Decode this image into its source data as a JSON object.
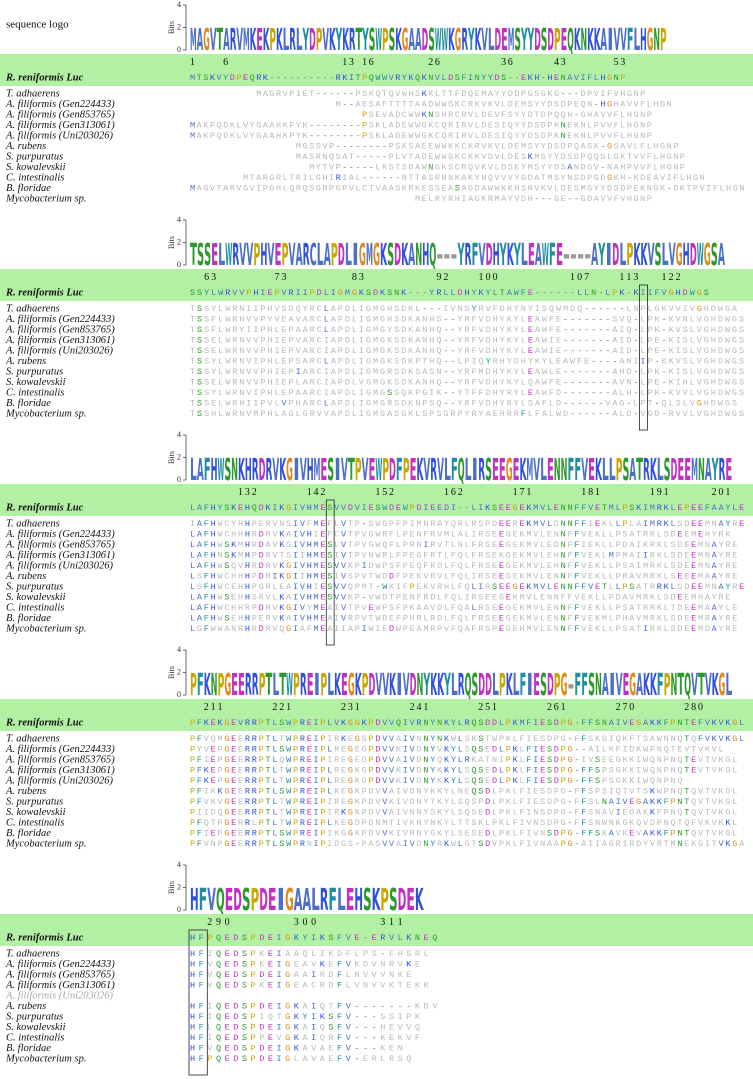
{
  "logo_label": "sequence logo",
  "logo_axis": {
    "label": "Bits",
    "ticks": [
      0,
      2,
      4
    ]
  },
  "reference_name": "R. reniformis Luc",
  "species": [
    "T. adhaerens",
    "A. filiformis (Gen224433)",
    "A. filiformis (Gen853765)",
    "A. filiformis (Gen313061)",
    "A. filiformis (Uni203026)",
    "A. rubens",
    "S. purpuratus",
    "S. kowalevskii",
    "C. intestinalis",
    "B. floridae",
    "Mycobacterium sp."
  ],
  "residue_colors": {
    "KRH": "#2f4fe0",
    "DE": "#c22fc2",
    "STNQ": "#2a9a2a",
    "G": "#e08a1a",
    "P": "#c8a800",
    "FWY": "#1f8fa0",
    "AVLIMC": "#4d6fc8"
  },
  "blocks": [
    {
      "logo": "MAGVTARVMKEKPKLRLYDPVKYKRTYSWPSKGAADSWWKGRYKVLDEMSYYDSDPEQKNKKAIVVFLHGNP",
      "ruler": "1    6                 13 16        26         36      43       53",
      "reference": "MTSKVYDPEQRK----------RKITPQWWVRYKQKNVLDSFINYYDS--EKH-HENAVIFLHGNP",
      "rows": [
        "          MAGRVPIET------PSKQTQVWHSKKLTTFDQEMAYYDDPGSGKG---DPVIFVHGNP",
        "                      M--AESAFTTTTAADWWGKCRKVKVLDEMSYYDSDPEQN-HGHAVVFLHGN",
        "                          PSEVADCWWKNSHRCRVLDEVFSYYDTDPQQH-GHAVVFLHGNP",
        "MAKPQDKLVYGAAHKPYK--------PSKLADEWWGKCQRIRVLDESIQYYDSDPKNEKNLPVVFLHGNP",
        "MAKPQDKLVYGAAHKPYK--------PSKLADEWWGKCQRIRVLDESIQYYDSDPKNEKNLPVVFLHGNP",
        "                MGSSVP--------PSKSAEEWWKKCKRVKVLDEMSYYDSDPQASK-GSAVLFLHGNP",
        "                MASRNQSAT-----PLVTADEWWGKCKKVDVLDESKMSYYDSDPQQSLGKTVVFLHGNP",
        "                  MYTVP-----LKSTSDAWNGKSCRQVKVLDSEYMSYYDSANDGV-NAHPVVFLHGNP",
        "        MTARGRLTRILGHIRIAL------NTTASRNNKAKYNQVVVYGDATMSYNSDPGDGKH-KDEAVIFLHGN",
        "MAGVTARVGVIPGHLQRQSGRPGPVLCTVAASKRKESSEASAGDAWWKKHSRVKVLDESMSYYDSDPEKNGK-DKTPVIFLHGN",
        "                                  MELRYRHIAGKRMAYVDH---GE--GDAVVFVHGNP"
      ]
    },
    {
      "logo": "TSSELWRVVPHVEPVARCLAPDLIGMGKSDKANHQ---YRFVDHYKYLEAWFE----AYIDLPKKVSLVGHDWGSA",
      "ruler": "  63        73         83          92    100          107    113   122",
      "reference": "SSYLWRVVPHIEPVRIIPDLIGMGKSDKSNK---YRLLDHYKYLTAWFE------LLN-LPK-KIIFVGHDWGS",
      "rows": [
        "TSSYLWRNIIPHVSDQYRCLAPDLIGMGHSDKL---IVNSYRVFDHYNYISQWMDQ------LNPLGKVVIVGHDWGA",
        "TSSFLWRHVVPYVEAVARCLAPDLIGMGHSDKANHS--YRFVDHYKYLEAWFE-------SVQ-LPK-KVNLVGHDWGS",
        "TSSFLWRYIIPHLEPAARCLAPDLIGMGYSDKANHQ--YRFVDHYKYLEAWFE-------AIQ-LPK-KVSLVGHDWGS",
        "TSSELWRNVVPHIEPVARCIAPDLIGMGKSDKANHQ--YRFVDHYKYLEAWIE-------AID-LPE-KISLVGHDWGS",
        "TSSELWRNVVPHIEPVARCIAPDLIGMGKSDKANHQ--YRFVDHYKYLEAWIE-------AID-LPE-KISLVGHDWGS",
        "TSSYLWRNVIPHLEPSARCLAPDLIGMGKSDKPTHQ--LPIQYRHYDHYKYLEAWFE----ANIIP-KKVSLVGHDWGS",
        "TSSYLWRNVVPHIEPIARCIAPDLIGMGRSDKSASN--YRFMDHYKYLEAWLE-------AHD-LPK-KISLVGHDWGS",
        "TSSELWRNVVPHIEPLARCIAPDLVGMGKSDKANHQ--YRFVDHYKYLQAWFE-------AVN-LPE-KIHLVGHDWGS",
        "TSSYLWRNVIPHLEPAARCIAPDLIGMGSSQKPGIK--YTFFDHYRYLEAWFD-------ALH-LPK-KVVLVGHDWGS",
        "TSSELWRHIIPVLVPHARCLAPDLIGMGRSDKNPSQ--YRFVDHYRYLSAFLD------VAG-LPT-QLSLVGHDWGS",
        "TSSHLWRNVMPHLAGLGRVVAPDLIGMGASGKLSPSGRPYRYAEHRRFLFALWD------ALD-VGD-RVVLVGHDWGS"
      ]
    },
    {
      "logo": "LAFHWSNKHRDRVKGIVHMESIVTPVEWPDFPEKVRVLFQLIRSEEGEKMVLENNFFVEKLLPSATRKLSDEEMNAYRE",
      "ruler": "       132       142       152       162       171       181       191      201",
      "reference": "LAFHYSKEHQDKIKGIVHMESVVDVIESWDEWPDIEEDI--LIKSEEGEKMVLENNFFVETMLPSKIMRKLEPEEFAAYLE",
      "rows": [
        "IAFHWCYHHPERVNSIVFMEFLVTP-SWGPFPIMNRAYQRLRSPDEEREKMVLDNNFFIEKLLPLAIMRKLSDEEMNAYRE",
        "LAFHWCHHHRDRVKAIVHIEFCVTPVGWRFLPENFRVMLALIRSEEGEKMVLENNFFVEKLLPSATRRLSDEEMEHYRK",
        "LAFHWSKMHRDAVKSIVHMESLVTPVGWQFLPRNIRVTLNLFRSEEGEKMVLEDNFFIEKLLPDAIKRKLSDEEMNAYRE",
        "LAFHNSKMHPDRVTSIIHMESIVTPVNWRLFPEGFRTLFQLFRSEKGEKMVLEHNFFVEKLMPMAIIRKLSDEEMNAYRE",
        "LAFHWSQVHRDRVKGIVHMESVVKPIDWPSFPEQFRDLFQLFRSEEGEKMVLEHNFFVEKLLPSAIMRKLSDEEMNAYRE",
        "LSFHWCHHHPDRIKGIIHMESIVSPVTWDDFPEKVRVLFQLIRSEEGEKMVLENNFFVEKLLPRAVMRKLSEEEMAAYRE",
        "LSFHWCEHHPGRLEAIVHIESVVQPMT-WKIFPEKVRHLFQLIRSEEGEKMVLENNFFVETLLPSATRRKLSDEEMNAYRE",
        "LAFHWSEHHSRVLKAIVHMESVVKP-VWDTPENFRDLFQLIRSEEGEKMVLENNFFVEKLLPDAVMRKLSDEEMHAYRE",
        "LAFHWCHHRPDRVKGIVYMEAIVTPVEWPSFPKAAVDLFQALRSEEGEKMVLENNFFVEKLLPSATRRKLTDEEMAAYLE",
        "LAFHWSEHHPERVKAIVHMEAIVRPVTWDEFPHRLRDLFQLFRSEEGEKMVLENNFFVEKMLPHAVMRKLSDEEMRAYRE",
        "LGFWWANRHRDRVQGIAFMEAIIAPIWIEDWPEAMRPVFQAFRSPEGEHMVLENNFFVEKLLPSATIRKLSDEEMDAYRE"
      ]
    },
    {
      "logo": "PFKNPGEERRPTLTWPREIPLKEGKPDVVKIVDNYKKYLRQSDDLPKLFIESDPG-FFSNAIVEGAKKFPNTQVTVKGL",
      "ruler": "  211       221       231       241       251       261       270       280",
      "reference": "PFKEKGEVRRPTLSWPREIPLVKGGKPDVVQIVRNYNKYLRQSDDLPKMFIESDPG-FFSNAIVEGAKKFPNTEFVKVKGL",
      "rows": [
        "PFVQMGEERRPTLTWPREIPIRKEGSPDVVAIVNNYNKWLSKSTWPKLFIESDPG-FFSKGIQKFTSAWNNQTQFVKVKGL",
        "PYVEPGEERRPTLSWPREIPLREGEGPDVVKIVDNYVKYLSQSEDLPKLFIESDPG--AILKFIDKWPNQTEVTVKVL",
        "PFIEPGEERRPTLQWPREIPIREGEGPDVVAIVDNYQKYLRKATNIPKLFIESDPG-IVSEEGKKIWQNPNQTEVTVKGL",
        "PFKEPGEERRPTLTWPREIPLREGKGPDVVKIVDNYKKYLSQSEDLPKLFIESDPG-FFSPSGKKIWQNPNQTEVTVKGL",
        "PFKEPGEERRPTLTWPREIPLREGKGPDVVKIVDNYKKYLSQSEDLPKLFIESDPG-FFSPSGKKIWQNPNQ",
        "PFIKKGEERRPTLSWPREIPLKEGKPDVVAIVDNYKKYLNEQSDLPKLFIESDPG-FFSPSIQTVTSKWPNQTQVTVKGL",
        "PFVKVGEERRPTLTWPREIPIREGKPDVVKIVDNYTKYLSQSPDLPKLFIESDPG-FFSLNAIVEGAKKFPNTQVTVKGL",
        "PIIDQGEERRPTLTWPREIPIRKGKPDVVAIVNNYSKYLSQSEDLPKLFINSDPG-FFSNAVIEGAKKFPNQTQVTVKGL",
        "PFQTPGERRLPTLTWPREIPLKEGDPDNMTIVKNYNKYLTTSKLPKLFIVNSDPG-FFSNWNKGKQVDPNQTQFVKVKKL",
        "PFIEPGEERRPTLSWPREIPIKGGKPDVVKIVRNYGKYLSESEDLPKLFIVNSDPG-FFSKAVKEVAKKFPNTQVTVKGL",
        "PFVNPGEERRPTLSWPRNIPIDGS-PASVVAIVDNYRKWLGTSDVPKLFIVNAAPG-AIIAGRIRDYVRTMNEKGITVKGA"
      ]
    },
    {
      "logo": "HFVQEDSPDEIGAALRFLEHSKPSDEK",
      "ruler": "  290       300       311",
      "reference": "HFPQEDSPDEIGKYIKSFVE-ERVLKNEQ",
      "rows": [
        "HFIQEDSPKEIAAQLIKDFLPS-FHSRL",
        "HFVQEDSPKEIGEAVKEFVKDVNRVKE",
        "HFVQEDSPDEIGAAIRDFLNVVVNKE",
        "HFVQEDSPKEIGEACRDFLVNVVKTEKK",
        "",
        "HFIQEDSPDEIGKAIQTFV-------KDV",
        "HFIQEDSPIQTGKYIKSFV---SSIPK",
        "HFLQEDSPDEIGKAIQSFV---HEVVQ",
        "HFIQEDSPPEVGKAIQRFV---KEKVF",
        "HFVQEDSPDEIGKAVAEFV---KEN",
        "HFPQEDSPDEIGLAVAEFV-ERLRSQ"
      ]
    }
  ]
}
